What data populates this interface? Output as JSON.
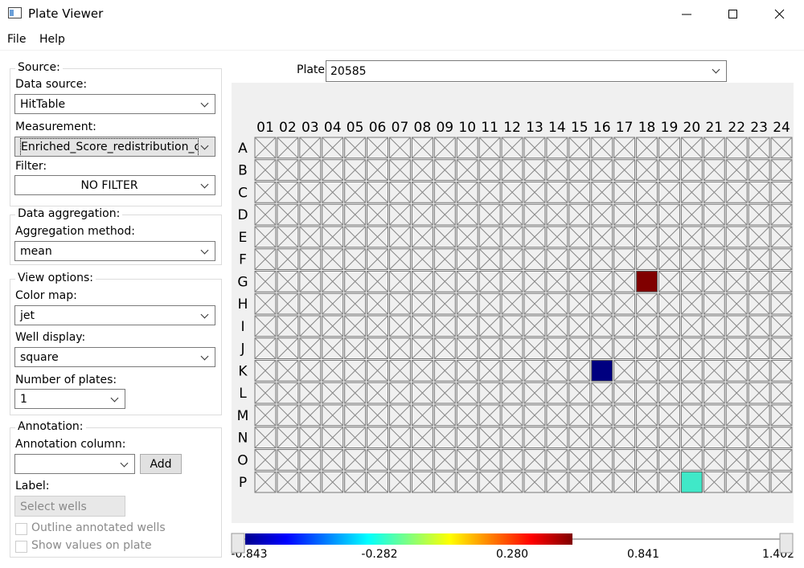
{
  "window": {
    "title": "Plate Viewer"
  },
  "menu": [
    "File",
    "Help"
  ],
  "source": {
    "legend": "Source:",
    "data_source_label": "Data source:",
    "data_source": "HitTable",
    "measurement_label": "Measurement:",
    "measurement": "Enriched_Score_redistribution_of",
    "filter_label": "Filter:",
    "filter": "NO FILTER"
  },
  "aggregation": {
    "legend": "Data aggregation:",
    "method_label": "Aggregation method:",
    "method": "mean"
  },
  "view": {
    "legend": "View options:",
    "color_map_label": "Color map:",
    "color_map": "jet",
    "well_display_label": "Well display:",
    "well_display": "square",
    "plates_label": "Number of plates:",
    "plates": "1"
  },
  "annotation": {
    "legend": "Annotation:",
    "column_label": "Annotation column:",
    "add": "Add",
    "label_label": "Label:",
    "select_wells": "Select wells",
    "outline": "Outline annotated wells",
    "show_values": "Show values on plate"
  },
  "plate": {
    "label": "Plate:",
    "value": "20585",
    "columns": [
      "01",
      "02",
      "03",
      "04",
      "05",
      "06",
      "07",
      "08",
      "09",
      "10",
      "11",
      "12",
      "13",
      "14",
      "15",
      "16",
      "17",
      "18",
      "19",
      "20",
      "21",
      "22",
      "23",
      "24"
    ],
    "rows": [
      {
        "label": "A",
        "wells": [
          null,
          null,
          null,
          null,
          null,
          null,
          null,
          null,
          null,
          null,
          null,
          null,
          null,
          null,
          null,
          null,
          null,
          null,
          null,
          null,
          null,
          null,
          null,
          null
        ]
      },
      {
        "label": "B",
        "wells": [
          null,
          null,
          null,
          null,
          null,
          null,
          null,
          null,
          null,
          null,
          null,
          null,
          null,
          null,
          null,
          null,
          null,
          null,
          null,
          null,
          null,
          null,
          null,
          null
        ]
      },
      {
        "label": "C",
        "wells": [
          null,
          null,
          null,
          null,
          null,
          null,
          null,
          null,
          null,
          null,
          null,
          null,
          null,
          null,
          null,
          null,
          null,
          null,
          null,
          null,
          null,
          null,
          null,
          null
        ]
      },
      {
        "label": "D",
        "wells": [
          null,
          null,
          null,
          null,
          null,
          null,
          null,
          null,
          null,
          null,
          null,
          null,
          null,
          null,
          null,
          null,
          null,
          null,
          null,
          null,
          null,
          null,
          null,
          null
        ]
      },
      {
        "label": "E",
        "wells": [
          null,
          null,
          null,
          null,
          null,
          null,
          null,
          null,
          null,
          null,
          null,
          null,
          null,
          null,
          null,
          null,
          null,
          null,
          null,
          null,
          null,
          null,
          null,
          null
        ]
      },
      {
        "label": "F",
        "wells": [
          null,
          null,
          null,
          null,
          null,
          null,
          null,
          null,
          null,
          null,
          null,
          null,
          null,
          null,
          null,
          null,
          null,
          null,
          null,
          null,
          null,
          null,
          null,
          null
        ]
      },
      {
        "label": "G",
        "wells": [
          null,
          null,
          null,
          null,
          null,
          null,
          null,
          null,
          null,
          null,
          null,
          null,
          null,
          null,
          null,
          null,
          null,
          "#800000",
          null,
          null,
          null,
          null,
          null,
          null
        ]
      },
      {
        "label": "H",
        "wells": [
          null,
          null,
          null,
          null,
          null,
          null,
          null,
          null,
          null,
          null,
          null,
          null,
          null,
          null,
          null,
          null,
          null,
          null,
          null,
          null,
          null,
          null,
          null,
          null
        ]
      },
      {
        "label": "I",
        "wells": [
          null,
          null,
          null,
          null,
          null,
          null,
          null,
          null,
          null,
          null,
          null,
          null,
          null,
          null,
          null,
          null,
          null,
          null,
          null,
          null,
          null,
          null,
          null,
          null
        ]
      },
      {
        "label": "J",
        "wells": [
          null,
          null,
          null,
          null,
          null,
          null,
          null,
          null,
          null,
          null,
          null,
          null,
          null,
          null,
          null,
          null,
          null,
          null,
          null,
          null,
          null,
          null,
          null,
          null
        ]
      },
      {
        "label": "K",
        "wells": [
          null,
          null,
          null,
          null,
          null,
          null,
          null,
          null,
          null,
          null,
          null,
          null,
          null,
          null,
          null,
          "#000080",
          null,
          null,
          null,
          null,
          null,
          null,
          null,
          null
        ]
      },
      {
        "label": "L",
        "wells": [
          null,
          null,
          null,
          null,
          null,
          null,
          null,
          null,
          null,
          null,
          null,
          null,
          null,
          null,
          null,
          null,
          null,
          null,
          null,
          null,
          null,
          null,
          null,
          null
        ]
      },
      {
        "label": "M",
        "wells": [
          null,
          null,
          null,
          null,
          null,
          null,
          null,
          null,
          null,
          null,
          null,
          null,
          null,
          null,
          null,
          null,
          null,
          null,
          null,
          null,
          null,
          null,
          null,
          null
        ]
      },
      {
        "label": "N",
        "wells": [
          null,
          null,
          null,
          null,
          null,
          null,
          null,
          null,
          null,
          null,
          null,
          null,
          null,
          null,
          null,
          null,
          null,
          null,
          null,
          null,
          null,
          null,
          null,
          null
        ]
      },
      {
        "label": "O",
        "wells": [
          null,
          null,
          null,
          null,
          null,
          null,
          null,
          null,
          null,
          null,
          null,
          null,
          null,
          null,
          null,
          null,
          null,
          null,
          null,
          null,
          null,
          null,
          null,
          null
        ]
      },
      {
        "label": "P",
        "wells": [
          null,
          null,
          null,
          null,
          null,
          null,
          null,
          null,
          null,
          null,
          null,
          null,
          null,
          null,
          null,
          null,
          null,
          null,
          null,
          "#40e8c8",
          null,
          null,
          null,
          null
        ]
      }
    ]
  },
  "colorbar": {
    "ticks": [
      "-0.843",
      "-0.282",
      "0.280",
      "0.841",
      "1.402"
    ]
  }
}
